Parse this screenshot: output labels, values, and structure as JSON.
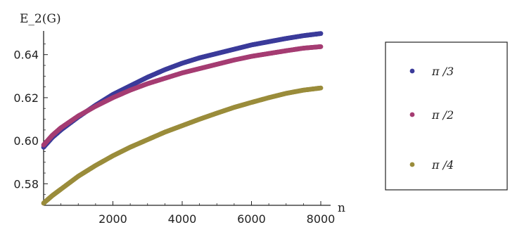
{
  "chart_data": {
    "type": "scatter",
    "ylabel": "E_2(G)",
    "xlabel": "n",
    "xlim": [
      0,
      8000
    ],
    "ylim": [
      0.57,
      0.651
    ],
    "x_ticks": [
      2000,
      4000,
      6000,
      8000
    ],
    "x_tick_labels": [
      "2000",
      "4000",
      "6000",
      "8000"
    ],
    "y_ticks": [
      0.58,
      0.6,
      0.62,
      0.64
    ],
    "y_tick_labels": [
      "0.58",
      "0.60",
      "0.62",
      "0.64"
    ],
    "grid": false,
    "legend_position": "right",
    "series": [
      {
        "name": "π /3",
        "color": "#3b3b9a",
        "x": [
          0,
          250,
          500,
          1000,
          1500,
          2000,
          2500,
          3000,
          3500,
          4000,
          4500,
          5000,
          5500,
          6000,
          6500,
          7000,
          7500,
          8000
        ],
        "y": [
          0.597,
          0.6015,
          0.605,
          0.611,
          0.6165,
          0.6215,
          0.6255,
          0.6295,
          0.633,
          0.636,
          0.6385,
          0.6405,
          0.6425,
          0.6445,
          0.646,
          0.6475,
          0.6488,
          0.6498
        ]
      },
      {
        "name": "π /2",
        "color": "#a53c72",
        "x": [
          0,
          250,
          500,
          1000,
          1500,
          2000,
          2500,
          3000,
          3500,
          4000,
          4500,
          5000,
          5500,
          6000,
          6500,
          7000,
          7500,
          8000
        ],
        "y": [
          0.598,
          0.6025,
          0.606,
          0.6115,
          0.616,
          0.62,
          0.6235,
          0.6265,
          0.629,
          0.6315,
          0.6335,
          0.6355,
          0.6375,
          0.6392,
          0.6405,
          0.6418,
          0.643,
          0.6437
        ]
      },
      {
        "name": "π /4",
        "color": "#9a8c3b",
        "x": [
          0,
          250,
          500,
          1000,
          1500,
          2000,
          2500,
          3000,
          3500,
          4000,
          4500,
          5000,
          5500,
          6000,
          6500,
          7000,
          7500,
          8000
        ],
        "y": [
          0.571,
          0.5745,
          0.5775,
          0.5835,
          0.5885,
          0.593,
          0.597,
          0.6005,
          0.604,
          0.607,
          0.61,
          0.6128,
          0.6155,
          0.6178,
          0.62,
          0.622,
          0.6235,
          0.6245
        ]
      }
    ]
  }
}
